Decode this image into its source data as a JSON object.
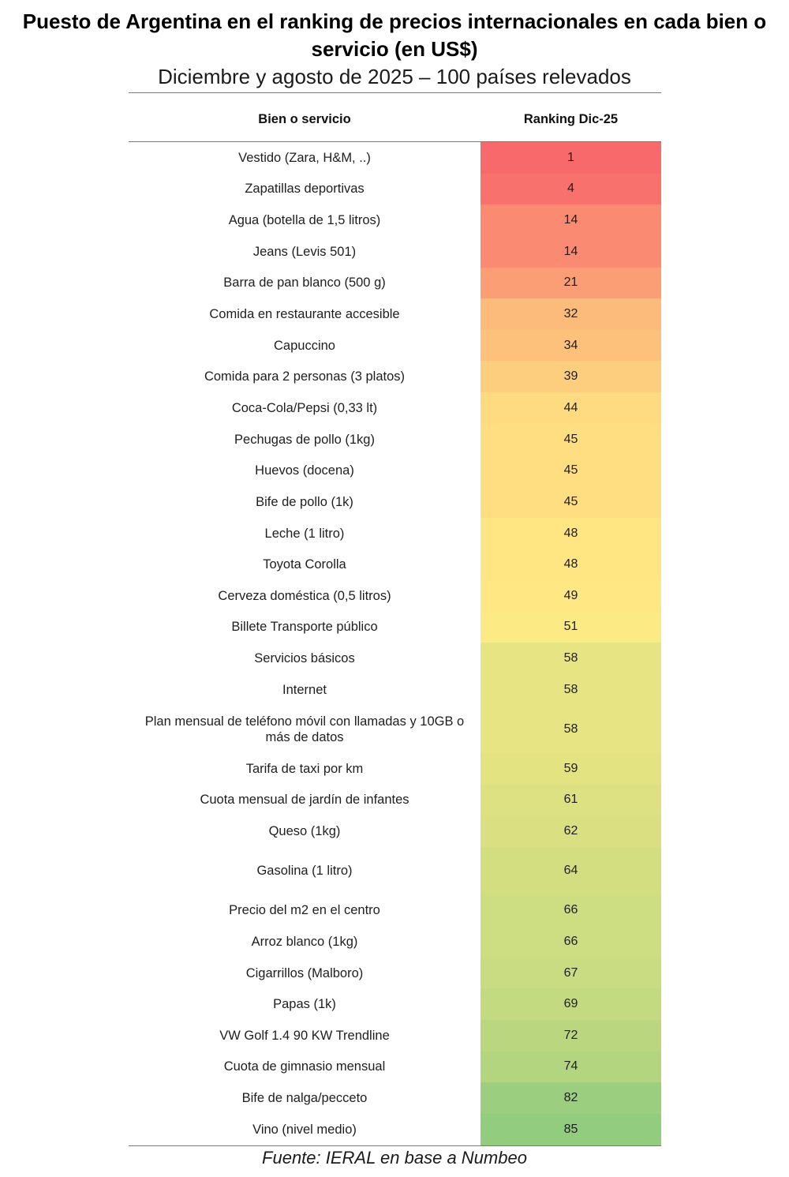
{
  "chart_data": {
    "type": "table",
    "title": "Puesto de Argentina en el ranking de precios internacionales en cada bien o servicio (en US$)",
    "subtitle": "Diciembre y agosto de 2025 – 100 países relevados",
    "columns": [
      "Bien o servicio",
      "Ranking Dic-25"
    ],
    "rows": [
      {
        "item": "Vestido (Zara, H&M, ..)",
        "ranking": 1
      },
      {
        "item": "Zapatillas deportivas",
        "ranking": 4
      },
      {
        "item": "Agua (botella de 1,5 litros)",
        "ranking": 14
      },
      {
        "item": "Jeans (Levis 501)",
        "ranking": 14
      },
      {
        "item": "Barra de pan blanco (500 g)",
        "ranking": 21
      },
      {
        "item": "Comida en restaurante accesible",
        "ranking": 32
      },
      {
        "item": "Capuccino",
        "ranking": 34
      },
      {
        "item": "Comida para 2 personas (3 platos)",
        "ranking": 39
      },
      {
        "item": "Coca-Cola/Pepsi (0,33 lt)",
        "ranking": 44
      },
      {
        "item": "Pechugas de pollo (1kg)",
        "ranking": 45
      },
      {
        "item": "Huevos (docena)",
        "ranking": 45
      },
      {
        "item": "Bife de pollo (1k)",
        "ranking": 45
      },
      {
        "item": "Leche (1 litro)",
        "ranking": 48
      },
      {
        "item": "Toyota Corolla",
        "ranking": 48
      },
      {
        "item": "Cerveza doméstica (0,5 litros)",
        "ranking": 49
      },
      {
        "item": "Billete Transporte público",
        "ranking": 51
      },
      {
        "item": "Servicios básicos",
        "ranking": 58
      },
      {
        "item": "Internet",
        "ranking": 58
      },
      {
        "item": "Plan mensual de teléfono móvil con llamadas y 10GB o más de datos",
        "ranking": 58
      },
      {
        "item": "Tarifa de taxi por km",
        "ranking": 59
      },
      {
        "item": "Cuota mensual de jardín de infantes",
        "ranking": 61
      },
      {
        "item": "Queso (1kg)",
        "ranking": 62
      },
      {
        "item": "Gasolina (1 litro)",
        "ranking": 64
      },
      {
        "item": "Precio del m2 en el centro",
        "ranking": 66
      },
      {
        "item": "Arroz blanco (1kg)",
        "ranking": 66
      },
      {
        "item": "Cigarrillos (Malboro)",
        "ranking": 67
      },
      {
        "item": "Papas (1k)",
        "ranking": 69
      },
      {
        "item": "VW Golf 1.4 90 KW Trendline",
        "ranking": 72
      },
      {
        "item": "Cuota de gimnasio mensual",
        "ranking": 74
      },
      {
        "item": "Bife de nalga/pecceto",
        "ranking": 82
      },
      {
        "item": "Vino (nivel medio)",
        "ranking": 85
      }
    ],
    "color_scale": {
      "values": [
        1,
        50,
        100
      ],
      "colors": [
        "#F8696B",
        "#FFEB84",
        "#63BE7B"
      ]
    },
    "source": "Fuente: IERAL en base a Numbeo"
  }
}
